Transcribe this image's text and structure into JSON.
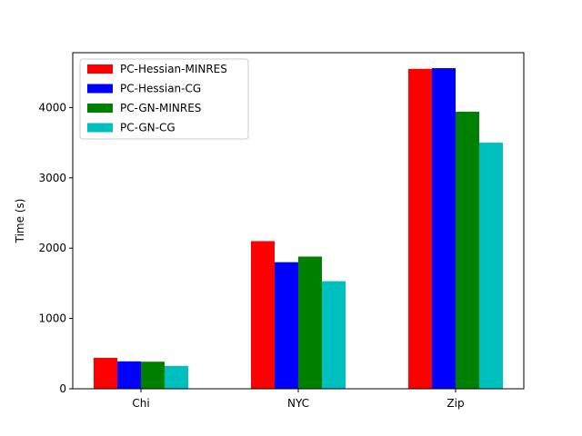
{
  "chart_data": {
    "type": "bar",
    "title": "",
    "xlabel": "",
    "ylabel": "Time (s)",
    "categories": [
      "Chi",
      "NYC",
      "Zip"
    ],
    "ylim": [
      0,
      4780
    ],
    "yticks": [
      0,
      1000,
      2000,
      3000,
      4000
    ],
    "grid": false,
    "legend_position": "top-left",
    "series": [
      {
        "name": "PC-Hessian-MINRES",
        "color": "#ff0000",
        "values": [
          440,
          2100,
          4550
        ]
      },
      {
        "name": "PC-Hessian-CG",
        "color": "#0000ff",
        "values": [
          390,
          1800,
          4560
        ]
      },
      {
        "name": "PC-GN-MINRES",
        "color": "#008000",
        "values": [
          385,
          1880,
          3940
        ]
      },
      {
        "name": "PC-GN-CG",
        "color": "#00bfbf",
        "values": [
          325,
          1530,
          3500
        ]
      }
    ]
  }
}
